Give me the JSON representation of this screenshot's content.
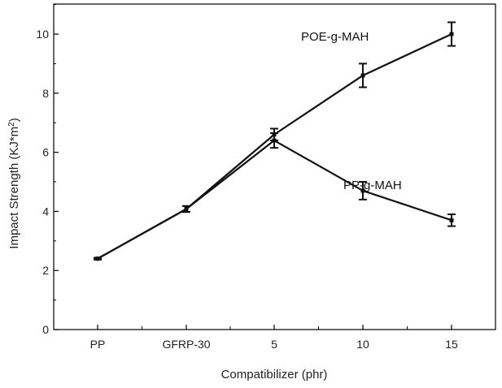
{
  "chart_data": {
    "type": "line",
    "xlabel": "Compatibilizer (phr)",
    "ylabel": "Impact Strength (KJ*m",
    "ylabel_superscript": "2",
    "ylabel_close": ")",
    "categories": [
      "PP",
      "GFRP-30",
      "5",
      "10",
      "15"
    ],
    "ylim": [
      0,
      11
    ],
    "yticks": [
      "0",
      "2",
      "4",
      "6",
      "8",
      "10"
    ],
    "grid": false,
    "series": [
      {
        "name": "POE-g-MAH",
        "values": [
          2.4,
          4.08,
          6.6,
          8.6,
          10.0
        ],
        "errors": [
          0.03,
          0.1,
          0.2,
          0.4,
          0.4
        ]
      },
      {
        "name": "PP-g-MAH",
        "values": [
          2.4,
          4.08,
          6.4,
          4.7,
          3.7
        ],
        "errors": [
          0.03,
          0.1,
          0.25,
          0.3,
          0.2
        ]
      }
    ],
    "colors": {
      "line": "#111111",
      "axis": "#000000"
    }
  }
}
